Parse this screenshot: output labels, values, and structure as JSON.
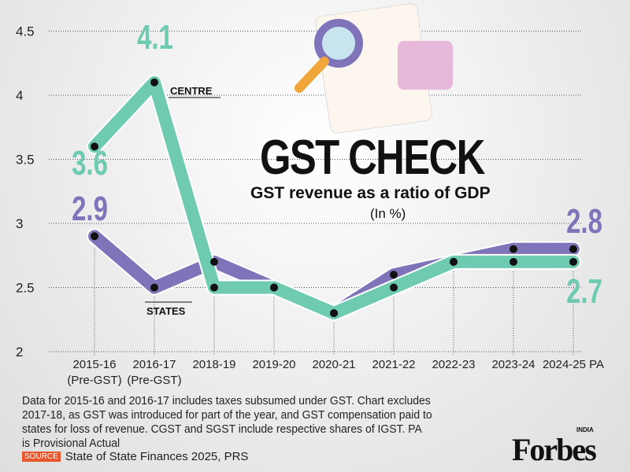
{
  "chart_data": {
    "type": "line",
    "title": "GST CHECK",
    "subtitle": "GST revenue as a ratio of GDP",
    "unit": "(In %)",
    "categories": [
      "2015-16\n(Pre-GST)",
      "2016-17\n(Pre-GST)",
      "2018-19",
      "2019-20",
      "2020-21",
      "2021-22",
      "2022-23",
      "2023-24",
      "2024-25 PA"
    ],
    "ylim": [
      2,
      4.5
    ],
    "yticks": [
      "2",
      "2.5",
      "3",
      "3.5",
      "4",
      "4.5"
    ],
    "grid": true,
    "series": [
      {
        "name": "CENTRE",
        "color": "#6ecbb1",
        "values": [
          3.6,
          4.1,
          2.5,
          2.5,
          2.3,
          2.5,
          2.7,
          2.7,
          2.7
        ]
      },
      {
        "name": "STATES",
        "color": "#7f74ba",
        "values": [
          2.9,
          2.5,
          2.7,
          2.5,
          2.3,
          2.6,
          2.7,
          2.8,
          2.8
        ]
      }
    ],
    "data_labels": {
      "centre_start": "3.6",
      "centre_peak": "4.1",
      "states_start": "2.9",
      "states_end": "2.8",
      "centre_end": "2.7"
    }
  },
  "notes": "Data for 2015-16 and 2016-17 includes taxes subsumed under GST. Chart excludes 2017-18, as GST was introduced for part of the year, and GST compensation paid to states for loss of revenue. CGST and SGST include respective shares of IGST. PA is Provisional Actual",
  "source_tag": "SOURCE",
  "source": "State of State Finances 2025, PRS",
  "logo": "Forbes",
  "logo_sub": "INDIA"
}
